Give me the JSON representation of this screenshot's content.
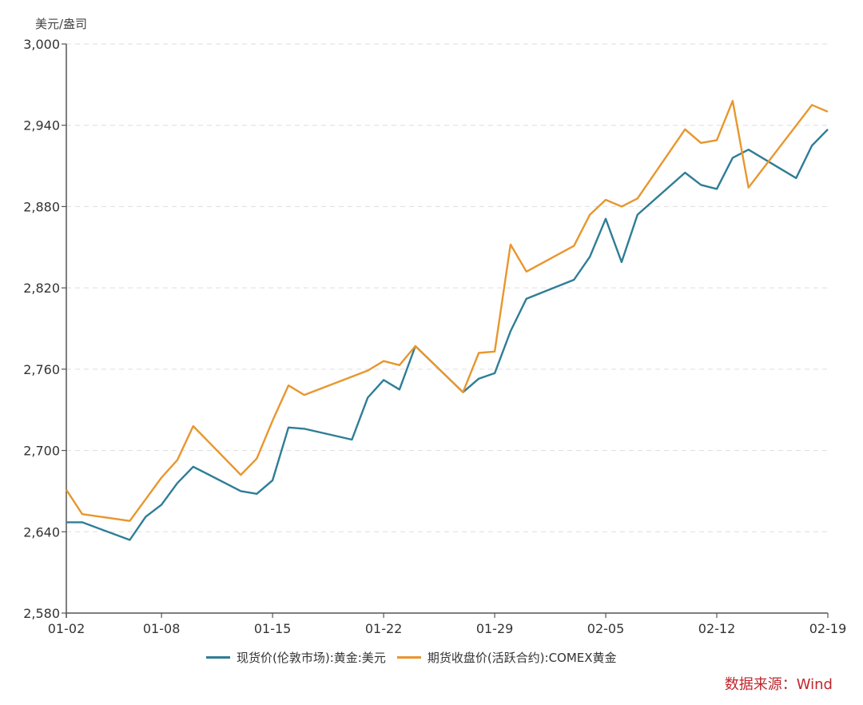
{
  "chart_data": {
    "type": "line",
    "title": "",
    "ylabel": "美元/盎司",
    "xlabel": "",
    "ylim": [
      2580,
      3000
    ],
    "yticks": [
      2580,
      2640,
      2700,
      2760,
      2820,
      2880,
      2940,
      3000
    ],
    "ytick_labels": [
      "2,580",
      "2,640",
      "2,700",
      "2,760",
      "2,820",
      "2,880",
      "2,940",
      "3,000"
    ],
    "xtick_labels": [
      "01-02",
      "01-08",
      "01-15",
      "01-22",
      "01-29",
      "02-05",
      "02-12",
      "02-19"
    ],
    "xtick_day_offsets": [
      0,
      6,
      13,
      20,
      27,
      34,
      41,
      48
    ],
    "grid": {
      "y": true,
      "x": false,
      "style": "dashed"
    },
    "legend_position": "bottom",
    "x": [
      "01-02",
      "01-03",
      "01-06",
      "01-07",
      "01-08",
      "01-09",
      "01-10",
      "01-13",
      "01-14",
      "01-15",
      "01-16",
      "01-17",
      "01-20",
      "01-21",
      "01-22",
      "01-23",
      "01-24",
      "01-27",
      "01-28",
      "01-29",
      "01-30",
      "01-31",
      "02-03",
      "02-04",
      "02-05",
      "02-06",
      "02-07",
      "02-10",
      "02-11",
      "02-12",
      "02-13",
      "02-14",
      "02-17",
      "02-18",
      "02-19"
    ],
    "x_day_offsets": [
      0,
      1,
      4,
      5,
      6,
      7,
      8,
      11,
      12,
      13,
      14,
      15,
      18,
      19,
      20,
      21,
      22,
      25,
      26,
      27,
      28,
      29,
      32,
      33,
      34,
      35,
      36,
      39,
      40,
      41,
      42,
      43,
      46,
      47,
      48
    ],
    "series": [
      {
        "name": "现货价(伦敦市场):黄金:美元",
        "color": "#2e7d96",
        "values": [
          2647,
          2647,
          2634,
          2651,
          2660,
          2676,
          2688,
          2670,
          2668,
          2678,
          2717,
          2716,
          2708,
          2739,
          2752,
          2745,
          2777,
          2743,
          2753,
          2757,
          2788,
          2812,
          2826,
          2843,
          2871,
          2839,
          2874,
          2905,
          2896,
          2893,
          2916,
          2922,
          2901,
          2925,
          2937
        ]
      },
      {
        "name": "期货收盘价(活跃合约):COMEX黄金",
        "color": "#e8962e",
        "values": [
          2671,
          2653,
          2648,
          2664,
          2680,
          2693,
          2718,
          2682,
          2694,
          2722,
          2748,
          2741,
          null,
          2759,
          2766,
          2763,
          2777,
          2743,
          2772,
          2773,
          2852,
          2832,
          2851,
          2874,
          2885,
          2880,
          2886,
          2937,
          2927,
          2929,
          2958,
          2894,
          null,
          2955,
          2950
        ]
      }
    ]
  },
  "axis": {
    "unit_label": "美元/盎司"
  },
  "legend": {
    "items": [
      {
        "label": "现货价(伦敦市场):黄金:美元",
        "color": "#2e7d96"
      },
      {
        "label": "期货收盘价(活跃合约):COMEX黄金",
        "color": "#e8962e"
      }
    ]
  },
  "source": {
    "text": "数据来源：Wind",
    "color": "#c0262c"
  }
}
